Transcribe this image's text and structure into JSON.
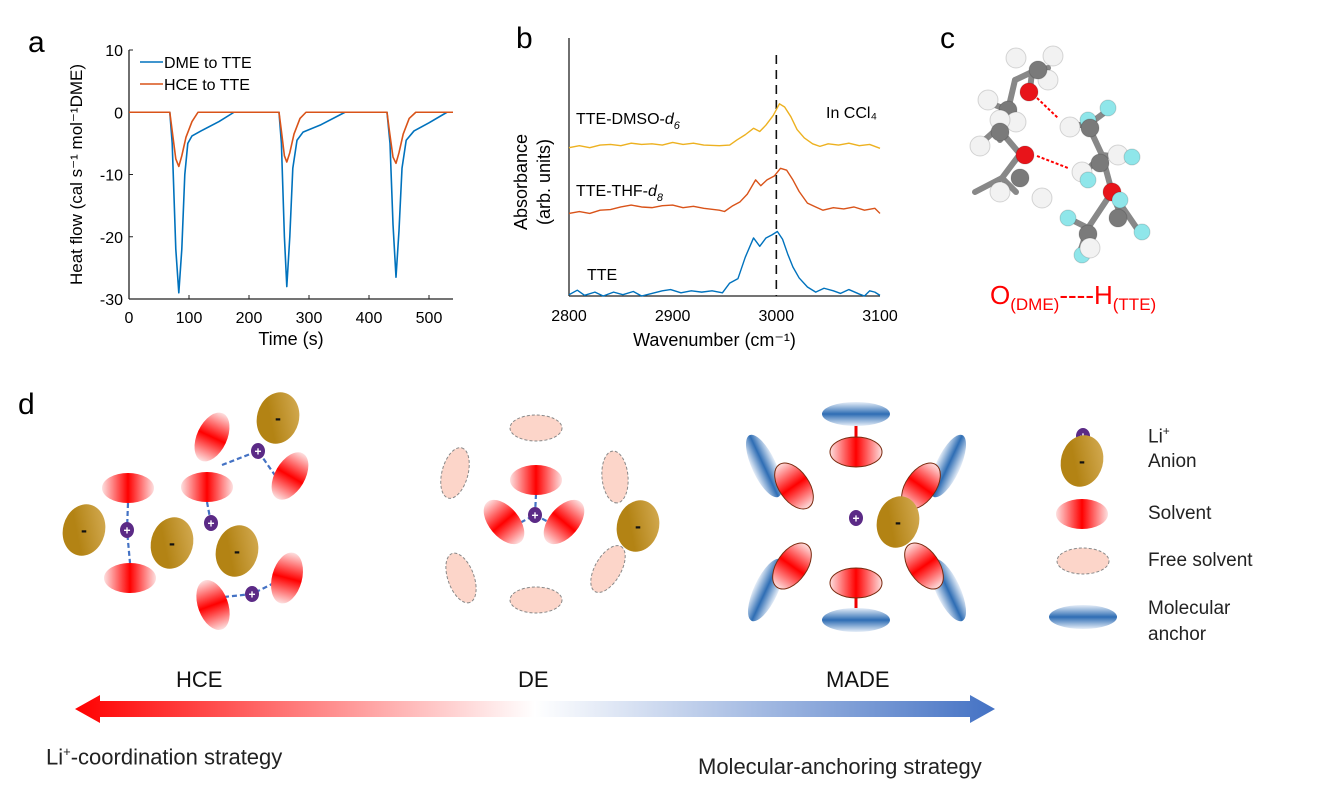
{
  "panels": {
    "a": "a",
    "b": "b",
    "c": "c",
    "d": "d"
  },
  "chart_data": [
    {
      "type": "line",
      "panel": "a",
      "xlabel": "Time (s)",
      "ylabel": "Heat flow (cal s⁻¹ mol⁻¹DME)",
      "xlim": [
        0,
        540
      ],
      "ylim": [
        -30,
        10
      ],
      "xticks": [
        0,
        100,
        200,
        300,
        400,
        500
      ],
      "yticks": [
        10,
        0,
        -10,
        -20,
        -30
      ],
      "legend": "top-left",
      "grid": false,
      "series": [
        {
          "name": "DME to TTE",
          "color": "#0072bd",
          "points": [
            [
              0,
              0
            ],
            [
              68,
              0
            ],
            [
              72,
              -5
            ],
            [
              78,
              -22
            ],
            [
              83,
              -29
            ],
            [
              88,
              -22
            ],
            [
              93,
              -10
            ],
            [
              98,
              -5
            ],
            [
              105,
              -3.8
            ],
            [
              120,
              -3
            ],
            [
              150,
              -1.5
            ],
            [
              175,
              0
            ],
            [
              250,
              0
            ],
            [
              254,
              -5
            ],
            [
              259,
              -20
            ],
            [
              263,
              -28
            ],
            [
              268,
              -20
            ],
            [
              273,
              -9
            ],
            [
              280,
              -4.5
            ],
            [
              290,
              -3.2
            ],
            [
              320,
              -2
            ],
            [
              360,
              0
            ],
            [
              430,
              0
            ],
            [
              435,
              -5
            ],
            [
              440,
              -18
            ],
            [
              445,
              -26.5
            ],
            [
              450,
              -19
            ],
            [
              455,
              -9
            ],
            [
              462,
              -4.5
            ],
            [
              475,
              -3
            ],
            [
              500,
              -1.7
            ],
            [
              530,
              0
            ],
            [
              540,
              0
            ]
          ]
        },
        {
          "name": "HCE to TTE",
          "color": "#d95319",
          "points": [
            [
              0,
              0
            ],
            [
              68,
              0
            ],
            [
              72,
              -3
            ],
            [
              78,
              -7.5
            ],
            [
              83,
              -8.7
            ],
            [
              88,
              -7
            ],
            [
              95,
              -4
            ],
            [
              105,
              -1.5
            ],
            [
              115,
              0
            ],
            [
              250,
              0
            ],
            [
              254,
              -3
            ],
            [
              259,
              -7
            ],
            [
              263,
              -8
            ],
            [
              268,
              -6.5
            ],
            [
              275,
              -3.5
            ],
            [
              285,
              -1
            ],
            [
              295,
              0
            ],
            [
              430,
              0
            ],
            [
              434,
              -3
            ],
            [
              440,
              -7.2
            ],
            [
              445,
              -8.2
            ],
            [
              450,
              -6.5
            ],
            [
              457,
              -3.5
            ],
            [
              467,
              -1
            ],
            [
              478,
              0
            ],
            [
              540,
              0
            ]
          ]
        }
      ]
    },
    {
      "type": "line",
      "panel": "b",
      "xlabel": "Wavenumber (cm⁻¹)",
      "ylabel": [
        "Absorbance",
        "(arb. units)"
      ],
      "xlim": [
        2800,
        3100
      ],
      "ylim": [
        0,
        4
      ],
      "xticks": [
        2800,
        2900,
        3000,
        3100
      ],
      "annotation": "In CCl₄",
      "reference_line_x": 3000,
      "series": [
        {
          "name": "TTE-DMSO-d6",
          "label_main": "TTE-DMSO-",
          "label_italic": "d",
          "label_sub": "6",
          "color": "#edb120",
          "points": [
            [
              2800,
              2.3
            ],
            [
              2810,
              2.33
            ],
            [
              2820,
              2.3
            ],
            [
              2830,
              2.34
            ],
            [
              2840,
              2.35
            ],
            [
              2850,
              2.33
            ],
            [
              2860,
              2.37
            ],
            [
              2870,
              2.35
            ],
            [
              2880,
              2.36
            ],
            [
              2890,
              2.34
            ],
            [
              2900,
              2.38
            ],
            [
              2910,
              2.35
            ],
            [
              2920,
              2.37
            ],
            [
              2930,
              2.34
            ],
            [
              2945,
              2.33
            ],
            [
              2955,
              2.34
            ],
            [
              2962,
              2.42
            ],
            [
              2970,
              2.5
            ],
            [
              2978,
              2.6
            ],
            [
              2984,
              2.55
            ],
            [
              2990,
              2.65
            ],
            [
              2997,
              2.8
            ],
            [
              3003,
              2.98
            ],
            [
              3008,
              2.93
            ],
            [
              3014,
              2.78
            ],
            [
              3020,
              2.58
            ],
            [
              3027,
              2.45
            ],
            [
              3035,
              2.36
            ],
            [
              3042,
              2.32
            ],
            [
              3050,
              2.36
            ],
            [
              3060,
              2.34
            ],
            [
              3070,
              2.37
            ],
            [
              3080,
              2.33
            ],
            [
              3090,
              2.35
            ],
            [
              3100,
              2.29
            ]
          ]
        },
        {
          "name": "TTE-THF-d8",
          "label_main": "TTE-THF-",
          "label_italic": "d",
          "label_sub": "8",
          "color": "#d95319",
          "points": [
            [
              2800,
              1.28
            ],
            [
              2810,
              1.31
            ],
            [
              2820,
              1.28
            ],
            [
              2830,
              1.33
            ],
            [
              2840,
              1.34
            ],
            [
              2850,
              1.38
            ],
            [
              2860,
              1.41
            ],
            [
              2870,
              1.38
            ],
            [
              2880,
              1.37
            ],
            [
              2890,
              1.4
            ],
            [
              2900,
              1.41
            ],
            [
              2910,
              1.37
            ],
            [
              2920,
              1.39
            ],
            [
              2930,
              1.36
            ],
            [
              2945,
              1.33
            ],
            [
              2950,
              1.31
            ],
            [
              2958,
              1.4
            ],
            [
              2965,
              1.46
            ],
            [
              2972,
              1.58
            ],
            [
              2980,
              1.8
            ],
            [
              2985,
              1.71
            ],
            [
              2991,
              1.8
            ],
            [
              2998,
              1.86
            ],
            [
              3004,
              1.98
            ],
            [
              3010,
              1.95
            ],
            [
              3016,
              1.8
            ],
            [
              3022,
              1.62
            ],
            [
              3030,
              1.44
            ],
            [
              3038,
              1.38
            ],
            [
              3045,
              1.33
            ],
            [
              3055,
              1.37
            ],
            [
              3065,
              1.35
            ],
            [
              3075,
              1.38
            ],
            [
              3085,
              1.33
            ],
            [
              3095,
              1.36
            ],
            [
              3100,
              1.28
            ]
          ]
        },
        {
          "name": "TTE",
          "label_main": "TTE",
          "color": "#0072bd",
          "points": [
            [
              2800,
              0.02
            ],
            [
              2808,
              0.09
            ],
            [
              2815,
              0.01
            ],
            [
              2825,
              0.06
            ],
            [
              2833,
              0.0
            ],
            [
              2843,
              0.06
            ],
            [
              2852,
              0.02
            ],
            [
              2862,
              0.07
            ],
            [
              2870,
              0.0
            ],
            [
              2880,
              0.04
            ],
            [
              2890,
              0.08
            ],
            [
              2898,
              0.1
            ],
            [
              2908,
              0.05
            ],
            [
              2918,
              0.08
            ],
            [
              2928,
              0.06
            ],
            [
              2938,
              0.08
            ],
            [
              2948,
              0.05
            ],
            [
              2955,
              0.2
            ],
            [
              2963,
              0.27
            ],
            [
              2970,
              0.6
            ],
            [
              2978,
              0.9
            ],
            [
              2984,
              0.77
            ],
            [
              2990,
              0.9
            ],
            [
              2996,
              0.95
            ],
            [
              3001,
              1.0
            ],
            [
              3006,
              0.88
            ],
            [
              3011,
              0.65
            ],
            [
              3016,
              0.45
            ],
            [
              3022,
              0.28
            ],
            [
              3030,
              0.14
            ],
            [
              3038,
              0.06
            ],
            [
              3046,
              0.12
            ],
            [
              3055,
              0.08
            ],
            [
              3062,
              0.04
            ],
            [
              3070,
              0.1
            ],
            [
              3080,
              0.03
            ],
            [
              3085,
              0.0
            ],
            [
              3090,
              0.08
            ],
            [
              3095,
              0.06
            ],
            [
              3100,
              0.01
            ]
          ]
        }
      ]
    }
  ],
  "molecule": {
    "label_o": "O",
    "label_o_sub": "(DME)",
    "label_dash_h": "----H",
    "label_h_sub": "(TTE)",
    "colors": {
      "oxygen": "#e8141a",
      "carbon": "#7a7a7a",
      "hydrogen": "#f2f2f2",
      "fluorine": "#8fe6ea"
    }
  },
  "schematic": {
    "regimes": [
      "HCE",
      "DE",
      "MADE"
    ],
    "strategies": {
      "left_main": "Li",
      "left_sup": "+",
      "left_rest": "-coordination strategy",
      "right": "Molecular-anchoring strategy"
    },
    "legend": [
      {
        "label": "Li",
        "sup": "+",
        "symbol": "li-ion"
      },
      {
        "label": "Anion",
        "symbol": "anion"
      },
      {
        "label": "Solvent",
        "symbol": "solvent"
      },
      {
        "label": "Free solvent",
        "symbol": "free-solvent"
      },
      {
        "label": "Molecular",
        "label2": "anchor",
        "symbol": "molecular-anchor"
      }
    ],
    "anion_sign": "-",
    "cation_sign": "+",
    "colors": {
      "solvent": "#ff0000",
      "anion": "#c59a2e",
      "li": "#5b2a86",
      "free_solvent": "#fcd5c9",
      "anchor": "#2e6db4",
      "arrow_left": "#ff0000",
      "arrow_right": "#4472c4"
    }
  }
}
